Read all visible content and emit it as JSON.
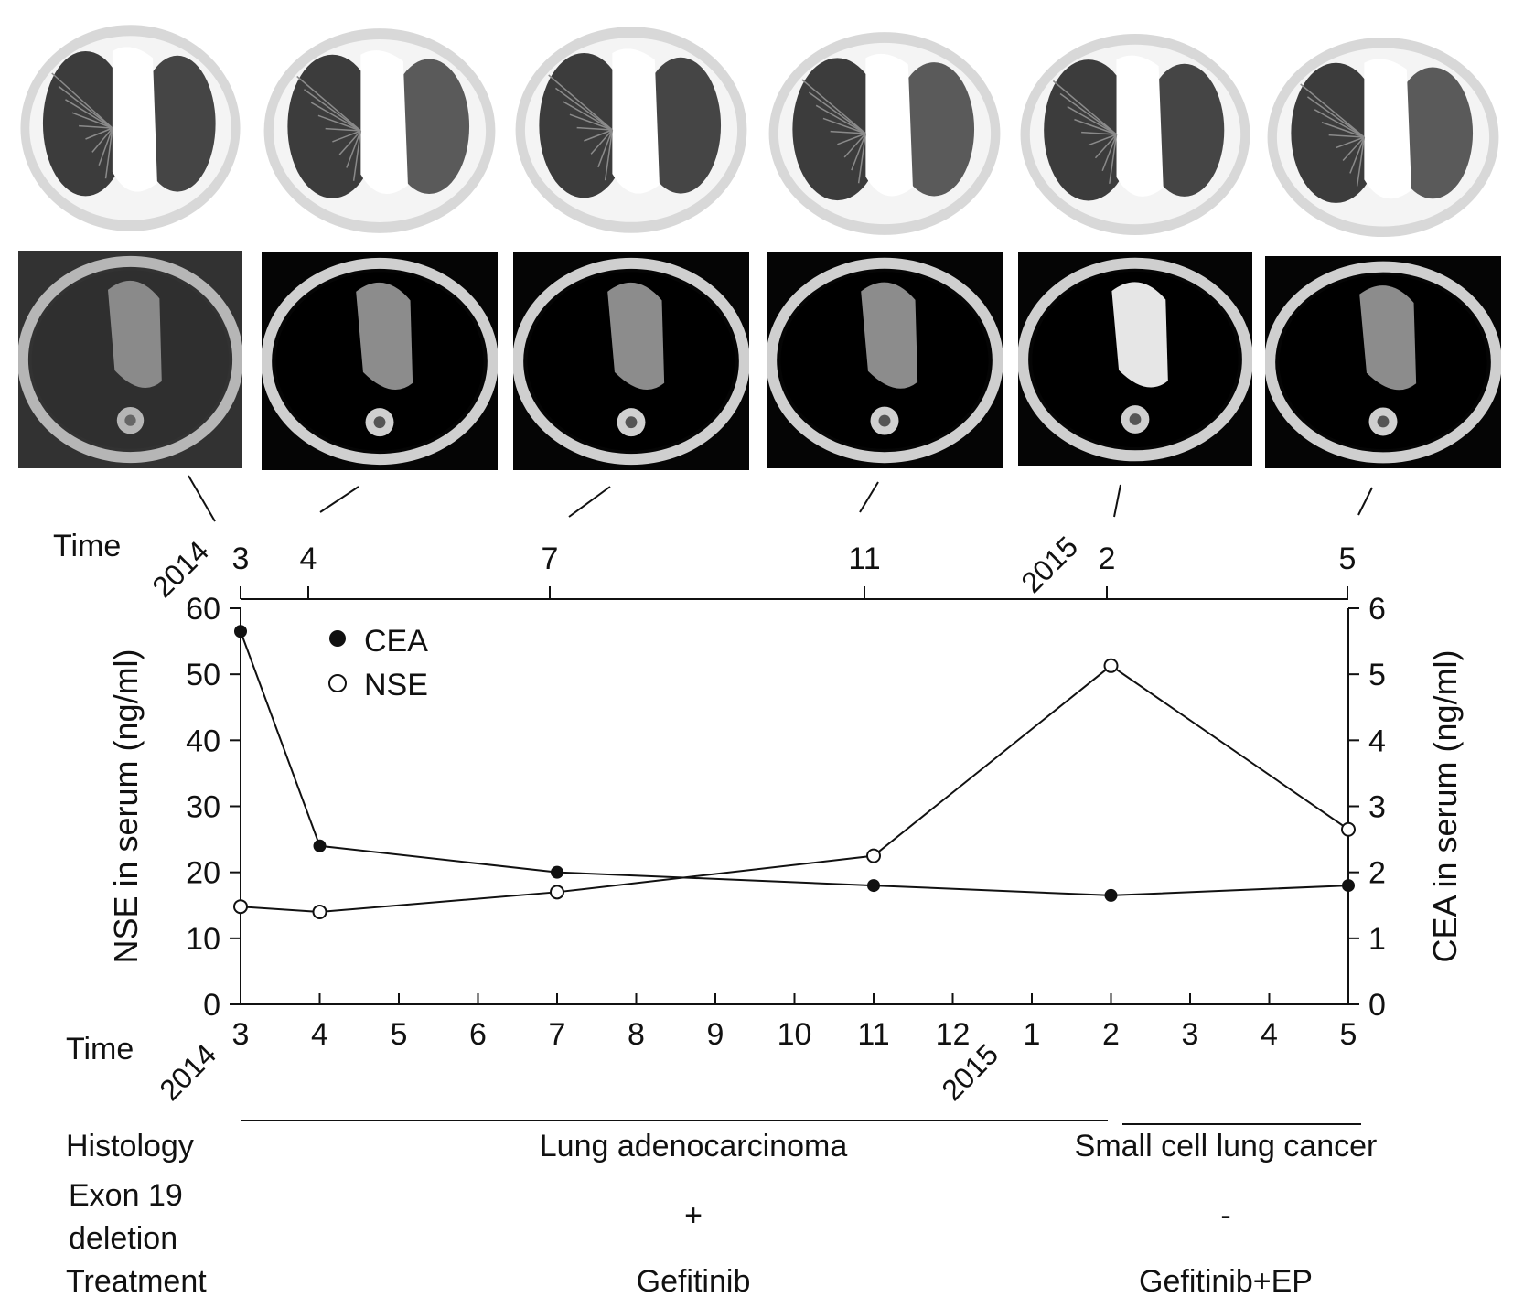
{
  "ct_images": [
    {
      "month": "3",
      "year": "2014",
      "row1": "lung",
      "row2": "mediastinal"
    },
    {
      "month": "4",
      "year": "",
      "row1": "lung",
      "row2": "mediastinal"
    },
    {
      "month": "7",
      "year": "",
      "row1": "lung",
      "row2": "mediastinal"
    },
    {
      "month": "11",
      "year": "",
      "row1": "lung",
      "row2": "mediastinal"
    },
    {
      "month": "2",
      "year": "2015",
      "row1": "lung",
      "row2": "mediastinal"
    },
    {
      "month": "5",
      "year": "",
      "row1": "lung",
      "row2": "mediastinal"
    }
  ],
  "top_axis": {
    "label": "Time",
    "ticks": [
      "3",
      "4",
      "7",
      "11",
      "2",
      "5"
    ],
    "years": [
      "2014",
      "2015"
    ]
  },
  "chart_data": {
    "type": "line",
    "x_label": "Time",
    "x_ticks": [
      "3",
      "4",
      "5",
      "6",
      "7",
      "8",
      "9",
      "10",
      "11",
      "12",
      "1",
      "2",
      "3",
      "4",
      "5"
    ],
    "x_years": [
      "2014",
      "2015"
    ],
    "y_left": {
      "label": "NSE in serum (ng/ml)",
      "range": [
        0,
        60
      ],
      "ticks": [
        "0",
        "10",
        "20",
        "30",
        "40",
        "50",
        "60"
      ]
    },
    "y_right": {
      "label": "CEA in serum (ng/ml)",
      "range": [
        0,
        6
      ],
      "ticks": [
        "0",
        "1",
        "2",
        "3",
        "4",
        "5",
        "6"
      ]
    },
    "x_index": [
      0,
      1,
      4,
      8,
      11,
      14
    ],
    "series": [
      {
        "name": "CEA",
        "axis": "right",
        "marker": "filled",
        "values": [
          5.65,
          2.4,
          2.0,
          1.8,
          1.65,
          1.8
        ]
      },
      {
        "name": "NSE",
        "axis": "left",
        "marker": "open",
        "values": [
          14.8,
          14.0,
          17.0,
          22.5,
          51.3,
          26.5
        ]
      }
    ],
    "legend_position": "top-left"
  },
  "histology": {
    "label": "Histology",
    "segments": [
      {
        "text": "Lung adenocarcinoma",
        "from": 0,
        "to": 11
      },
      {
        "text": "Small cell lung cancer",
        "from": 11,
        "to": 14
      }
    ]
  },
  "exon19": {
    "label_line1": "Exon 19",
    "label_line2": "deletion",
    "values": [
      "+",
      "-"
    ]
  },
  "treatment": {
    "label": "Treatment",
    "values": [
      "Gefitinib",
      "Gefitinib+EP"
    ]
  }
}
